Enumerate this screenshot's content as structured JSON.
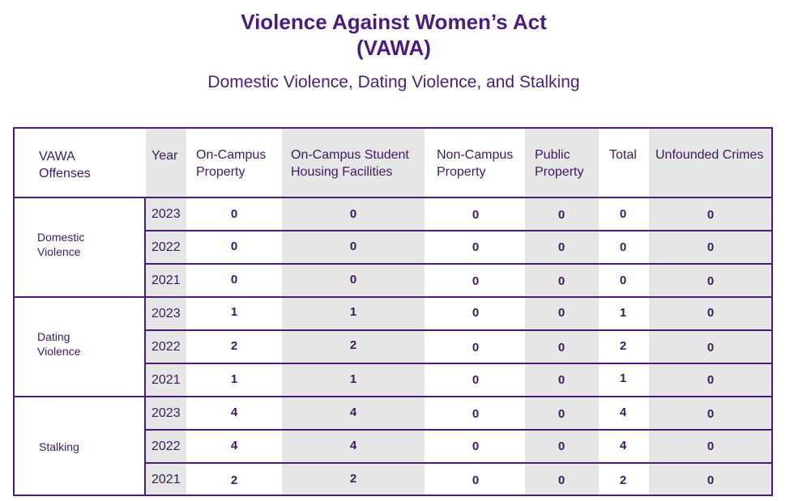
{
  "title_line1": "Violence Against Women’s Act",
  "title_line2": "(VAWA)",
  "subtitle": "Domestic Violence, Dating Violence, and Stalking",
  "headers": {
    "offense": [
      "VAWA",
      "Offenses"
    ],
    "year": "Year",
    "on_campus": [
      "On-Campus",
      "Property"
    ],
    "student_housing": [
      "On-Campus Student",
      "Housing Facilities"
    ],
    "non_campus": [
      "Non-Campus",
      "Property"
    ],
    "public": [
      "Public",
      "Property"
    ],
    "total": "Total",
    "unfounded": "Unfounded Crimes"
  },
  "groups": [
    {
      "offense": [
        "Domestic",
        "Violence"
      ],
      "rows": [
        {
          "year": "2023",
          "on_campus": "0",
          "student_housing": "0",
          "non_campus": "0",
          "public": "0",
          "total": "0",
          "unfounded": "0"
        },
        {
          "year": "2022",
          "on_campus": "0",
          "student_housing": "0",
          "non_campus": "0",
          "public": "0",
          "total": "0",
          "unfounded": "0"
        },
        {
          "year": "2021",
          "on_campus": "0",
          "student_housing": "0",
          "non_campus": "0",
          "public": "0",
          "total": "0",
          "unfounded": "0"
        }
      ]
    },
    {
      "offense": [
        "Dating",
        "Violence"
      ],
      "rows": [
        {
          "year": "2023",
          "on_campus": "1",
          "student_housing": "1",
          "non_campus": "0",
          "public": "0",
          "total": "1",
          "unfounded": "0"
        },
        {
          "year": "2022",
          "on_campus": "2",
          "student_housing": "2",
          "non_campus": "0",
          "public": "0",
          "total": "2",
          "unfounded": "0"
        },
        {
          "year": "2021",
          "on_campus": "1",
          "student_housing": "1",
          "non_campus": "0",
          "public": "0",
          "total": "1",
          "unfounded": "0"
        }
      ]
    },
    {
      "offense": [
        "Stalking"
      ],
      "rows": [
        {
          "year": "2023",
          "on_campus": "4",
          "student_housing": "4",
          "non_campus": "0",
          "public": "0",
          "total": "4",
          "unfounded": "0"
        },
        {
          "year": "2022",
          "on_campus": "4",
          "student_housing": "4",
          "non_campus": "0",
          "public": "0",
          "total": "4",
          "unfounded": "0"
        },
        {
          "year": "2021",
          "on_campus": "2",
          "student_housing": "2",
          "non_campus": "0",
          "public": "0",
          "total": "2",
          "unfounded": "0"
        }
      ]
    }
  ]
}
